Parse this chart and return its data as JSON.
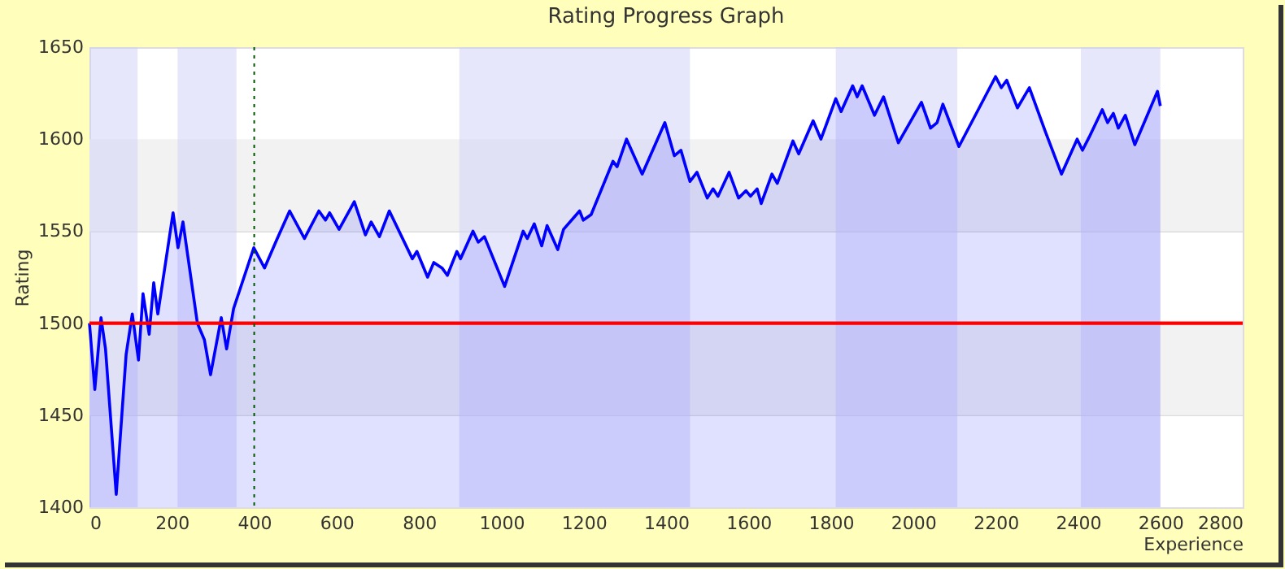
{
  "chart_data": {
    "type": "area",
    "title": "Rating Progress Graph",
    "xlabel": "Experience",
    "ylabel": "Rating",
    "x": [
      0,
      13,
      28,
      39,
      65,
      89,
      104,
      119,
      130,
      145,
      156,
      166,
      203,
      215,
      227,
      262,
      279,
      294,
      320,
      333,
      350,
      399,
      425,
      454,
      486,
      522,
      557,
      573,
      583,
      606,
      643,
      670,
      684,
      704,
      728,
      784,
      795,
      821,
      836,
      856,
      869,
      892,
      901,
      931,
      944,
      959,
      1008,
      1053,
      1063,
      1080,
      1098,
      1111,
      1137,
      1151,
      1190,
      1199,
      1218,
      1271,
      1281,
      1304,
      1342,
      1397,
      1420,
      1436,
      1458,
      1475,
      1500,
      1514,
      1526,
      1553,
      1576,
      1594,
      1605,
      1621,
      1631,
      1657,
      1670,
      1708,
      1722,
      1757,
      1776,
      1812,
      1825,
      1853,
      1864,
      1876,
      1906,
      1928,
      1964,
      2020,
      2042,
      2058,
      2072,
      2111,
      2200,
      2214,
      2227,
      2253,
      2282,
      2321,
      2360,
      2398,
      2411,
      2427,
      2459,
      2472,
      2486,
      2498,
      2515,
      2538,
      2593,
      2600
    ],
    "series": [
      {
        "color": "#0000ff",
        "values": [
          1500,
          1464,
          1503,
          1486,
          1407,
          1483,
          1505,
          1480,
          1516,
          1494,
          1522,
          1505,
          1560,
          1541,
          1555,
          1500,
          1491,
          1472,
          1503,
          1486,
          1508,
          1541,
          1530,
          1545,
          1561,
          1546,
          1561,
          1556,
          1560,
          1551,
          1566,
          1548,
          1555,
          1547,
          1561,
          1535,
          1539,
          1525,
          1533,
          1530,
          1526,
          1539,
          1535,
          1550,
          1544,
          1547,
          1520,
          1550,
          1546,
          1554,
          1542,
          1553,
          1540,
          1551,
          1561,
          1556,
          1559,
          1588,
          1585,
          1600,
          1581,
          1609,
          1591,
          1594,
          1577,
          1582,
          1568,
          1573,
          1569,
          1582,
          1568,
          1572,
          1569,
          1573,
          1565,
          1581,
          1576,
          1599,
          1592,
          1610,
          1600,
          1622,
          1615,
          1629,
          1623,
          1629,
          1613,
          1623,
          1598,
          1620,
          1606,
          1609,
          1619,
          1596,
          1634,
          1628,
          1632,
          1617,
          1628,
          1604,
          1581,
          1600,
          1594,
          1601,
          1616,
          1609,
          1614,
          1606,
          1613,
          1597,
          1626,
          1618
        ]
      }
    ],
    "xlim": [
      0,
      2800
    ],
    "xticks": [
      0,
      200,
      400,
      600,
      800,
      1000,
      1200,
      1400,
      1600,
      1800,
      2000,
      2200,
      2400,
      2600,
      2800
    ],
    "ylim": [
      1400,
      1650
    ],
    "yticks": [
      1400,
      1450,
      1500,
      1550,
      1600,
      1650
    ],
    "grid": "y",
    "line_style": "solid",
    "ref_lines": [
      {
        "axis": "y",
        "value": 1500,
        "color": "#ff0000",
        "line_style": "solid"
      },
      {
        "axis": "x",
        "value": 400,
        "color": "#005500",
        "line_style": "dotted"
      }
    ],
    "bands": [
      {
        "axis": "y",
        "from": 1450,
        "to": 1500,
        "color": "#f2f2f2"
      },
      {
        "axis": "y",
        "from": 1550,
        "to": 1600,
        "color": "#f2f2f2"
      },
      {
        "axis": "x",
        "from": 0,
        "to": 117,
        "color": "#cfcffa"
      },
      {
        "axis": "x",
        "from": 214,
        "to": 357,
        "color": "#cfcffa"
      },
      {
        "axis": "x",
        "from": 898,
        "to": 1458,
        "color": "#cfcffa"
      },
      {
        "axis": "x",
        "from": 1812,
        "to": 2107,
        "color": "#cfcffa"
      },
      {
        "axis": "x",
        "from": 2407,
        "to": 2600,
        "color": "#cfcffa"
      }
    ]
  }
}
